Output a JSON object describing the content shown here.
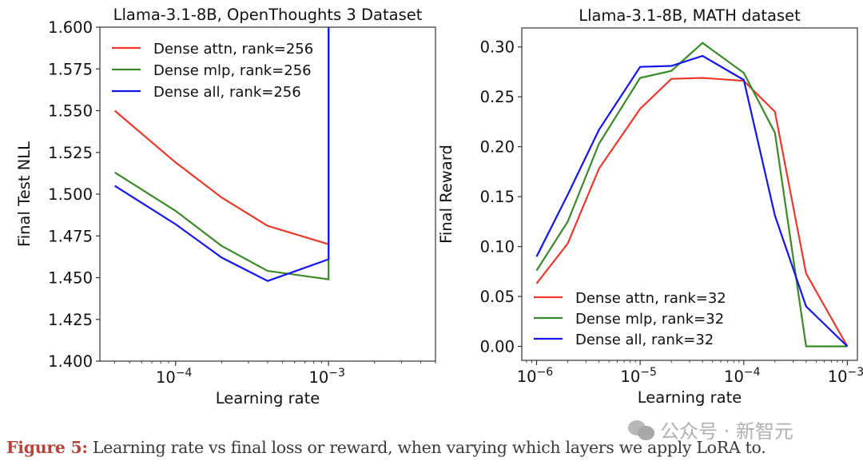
{
  "chart_data": [
    {
      "type": "line",
      "title": "Llama-3.1-8B, OpenThoughts 3 Dataset",
      "xlabel": "Learning rate",
      "ylabel": "Final Test NLL",
      "xscale": "log",
      "xlim": [
        3.2e-05,
        0.005
      ],
      "ylim": [
        1.4,
        1.6
      ],
      "xticks": [
        {
          "value": 0.0001,
          "label": "10",
          "exp": "−4"
        },
        {
          "value": 0.001,
          "label": "10",
          "exp": "−3"
        }
      ],
      "yticks": [
        1.4,
        1.425,
        1.45,
        1.475,
        1.5,
        1.525,
        1.55,
        1.575,
        1.6
      ],
      "ytick_labels": [
        "1.400",
        "1.425",
        "1.450",
        "1.475",
        "1.500",
        "1.525",
        "1.550",
        "1.575",
        "1.600"
      ],
      "grid": false,
      "legend_position": "top-left",
      "series": [
        {
          "name": "Dense attn, rank=256",
          "color": "#e8392c",
          "x": [
            4e-05,
            0.0001,
            0.0002,
            0.0004,
            0.001,
            0.001
          ],
          "y": [
            1.55,
            1.519,
            1.498,
            1.481,
            1.47,
            1.7
          ]
        },
        {
          "name": "Dense mlp, rank=256",
          "color": "#3a8a2a",
          "x": [
            4e-05,
            0.0001,
            0.0002,
            0.0004,
            0.001,
            0.001
          ],
          "y": [
            1.513,
            1.49,
            1.469,
            1.454,
            1.449,
            1.7
          ]
        },
        {
          "name": "Dense all, rank=256",
          "color": "#1414f0",
          "x": [
            4e-05,
            0.0001,
            0.0002,
            0.0004,
            0.001,
            0.001
          ],
          "y": [
            1.505,
            1.482,
            1.462,
            1.448,
            1.461,
            1.7
          ]
        }
      ]
    },
    {
      "type": "line",
      "title": "Llama-3.1-8B, MATH dataset",
      "xlabel": "Learning rate",
      "ylabel": "Final Reward",
      "xscale": "log",
      "xlim": [
        7.2e-07,
        0.00125
      ],
      "ylim": [
        -0.014,
        0.319
      ],
      "xticks": [
        {
          "value": 1e-06,
          "label": "10",
          "exp": "−6"
        },
        {
          "value": 1e-05,
          "label": "10",
          "exp": "−5"
        },
        {
          "value": 0.0001,
          "label": "10",
          "exp": "−4"
        },
        {
          "value": 0.001,
          "label": "10",
          "exp": "−3"
        }
      ],
      "yticks": [
        0.0,
        0.05,
        0.1,
        0.15,
        0.2,
        0.25,
        0.3
      ],
      "ytick_labels": [
        "0.00",
        "0.05",
        "0.10",
        "0.15",
        "0.20",
        "0.25",
        "0.30"
      ],
      "grid": false,
      "legend_position": "bottom-left",
      "series": [
        {
          "name": "Dense attn, rank=32",
          "color": "#e8392c",
          "x": [
            1e-06,
            2e-06,
            4e-06,
            1e-05,
            2e-05,
            4e-05,
            0.0001,
            0.0002,
            0.0004,
            0.001
          ],
          "y": [
            0.063,
            0.103,
            0.178,
            0.238,
            0.268,
            0.269,
            0.266,
            0.235,
            0.073,
            0.0
          ]
        },
        {
          "name": "Dense mlp, rank=32",
          "color": "#3a8a2a",
          "x": [
            1e-06,
            2e-06,
            4e-06,
            1e-05,
            2e-05,
            4e-05,
            0.0001,
            0.0002,
            0.0004,
            0.001
          ],
          "y": [
            0.076,
            0.125,
            0.203,
            0.269,
            0.276,
            0.304,
            0.274,
            0.214,
            0.0,
            0.0
          ]
        },
        {
          "name": "Dense all, rank=32",
          "color": "#1414f0",
          "x": [
            1e-06,
            2e-06,
            4e-06,
            1e-05,
            2e-05,
            4e-05,
            0.0001,
            0.0002,
            0.0004,
            0.001
          ],
          "y": [
            0.09,
            0.152,
            0.217,
            0.28,
            0.281,
            0.291,
            0.267,
            0.131,
            0.04,
            0.0
          ]
        }
      ]
    }
  ],
  "caption": {
    "label": "Figure 5:",
    "text": " Learning rate vs final loss or reward, when varying which layers we apply LoRA to."
  },
  "watermark": {
    "text": "公众号 · 新智元",
    "icon": "wechat-icon"
  }
}
